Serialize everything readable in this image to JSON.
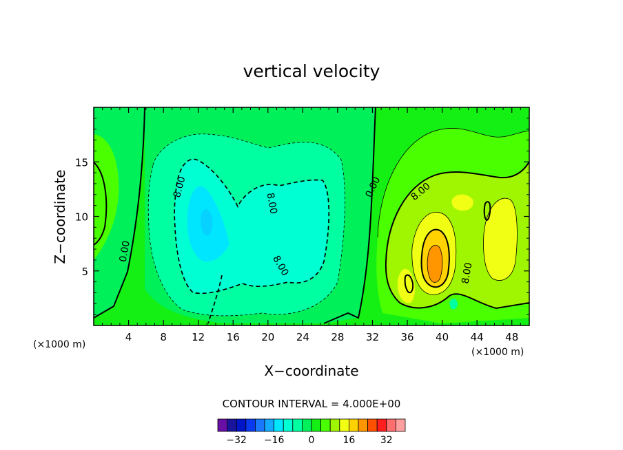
{
  "chart_data": {
    "type": "contour",
    "title": "vertical velocity",
    "xlabel": "X−coordinate",
    "ylabel": "Z−coordinate",
    "x_unit_label": "(×1000 m)",
    "y_unit_label": "(×1000 m)",
    "xlim": [
      0,
      50
    ],
    "ylim": [
      0,
      20
    ],
    "x_ticks": [
      4,
      8,
      12,
      16,
      20,
      24,
      28,
      32,
      36,
      40,
      44,
      48
    ],
    "y_ticks": [
      5,
      10,
      15
    ],
    "contour_interval_text": "CONTOUR INTERVAL = 4.000E+00",
    "contour_labels": [
      {
        "text": "0.00",
        "x": 3.5,
        "z": 6.8,
        "angle": -80
      },
      {
        "text": "8.00",
        "x": 9.8,
        "z": 12.7,
        "angle": -75
      },
      {
        "text": "8.00",
        "x": 20.5,
        "z": 11.2,
        "angle": 80
      },
      {
        "text": "8.00",
        "x": 21.5,
        "z": 5.5,
        "angle": 60
      },
      {
        "text": "0.00",
        "x": 32.0,
        "z": 12.7,
        "angle": -65
      },
      {
        "text": "8.00",
        "x": 37.5,
        "z": 12.3,
        "angle": -40
      },
      {
        "text": "8.00",
        "x": 42.8,
        "z": 4.8,
        "angle": -80
      }
    ],
    "colorbar": {
      "levels": [
        -36,
        -32,
        -28,
        -24,
        -20,
        -16,
        -12,
        -8,
        -4,
        0,
        4,
        8,
        12,
        16,
        20,
        24,
        28,
        32,
        36
      ],
      "tick_labels": [
        {
          "label": "−32",
          "value": -32
        },
        {
          "label": "−16",
          "value": -16
        },
        {
          "label": "0",
          "value": 0
        },
        {
          "label": "16",
          "value": 16
        },
        {
          "label": "32",
          "value": 32
        }
      ],
      "colors": [
        "#6a0fa5",
        "#1a149c",
        "#0014c8",
        "#0a3af0",
        "#1a78ff",
        "#14aaff",
        "#00e6ff",
        "#00ffd2",
        "#00ffa0",
        "#00f05a",
        "#14f014",
        "#4aff00",
        "#a0f500",
        "#f0ff14",
        "#ffd200",
        "#ff9600",
        "#ff5000",
        "#ff1e1e",
        "#ff6e6e",
        "#ffa0a0"
      ]
    }
  }
}
